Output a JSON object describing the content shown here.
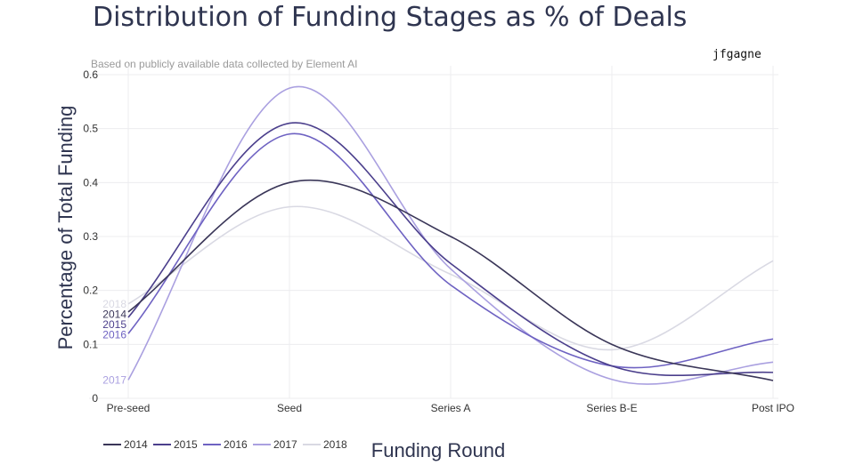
{
  "chart_data": {
    "type": "line",
    "title": "Distribution of Funding Stages as % of Deals",
    "subtitle": "Based on publicly available data collected by Element AI",
    "watermark": "jfgagne",
    "xlabel": "Funding Round",
    "ylabel": "Percentage of Total Funding",
    "categories": [
      "Pre-seed",
      "Seed",
      "Series A",
      "Series B-E",
      "Post IPO"
    ],
    "ylim": [
      0,
      0.6
    ],
    "yticks": [
      0,
      0.1,
      0.2,
      0.3,
      0.4,
      0.5,
      0.6
    ],
    "ytick_labels": [
      "0",
      "0.1",
      "0.2",
      "0.3",
      "0.4",
      "0.5",
      "0.6"
    ],
    "grid": true,
    "legend_position": "bottom-left",
    "series": [
      {
        "name": "2014",
        "color": "#3a3658",
        "values": [
          0.16,
          0.4,
          0.3,
          0.1,
          0.033
        ]
      },
      {
        "name": "2015",
        "color": "#4b3f8c",
        "values": [
          0.15,
          0.51,
          0.25,
          0.06,
          0.048
        ]
      },
      {
        "name": "2016",
        "color": "#6e62c2",
        "values": [
          0.12,
          0.49,
          0.21,
          0.06,
          0.11
        ]
      },
      {
        "name": "2017",
        "color": "#aaa0e0",
        "values": [
          0.034,
          0.575,
          0.24,
          0.035,
          0.067
        ]
      },
      {
        "name": "2018",
        "color": "#d9d9e3",
        "values": [
          0.175,
          0.355,
          0.23,
          0.09,
          0.255
        ]
      }
    ]
  }
}
